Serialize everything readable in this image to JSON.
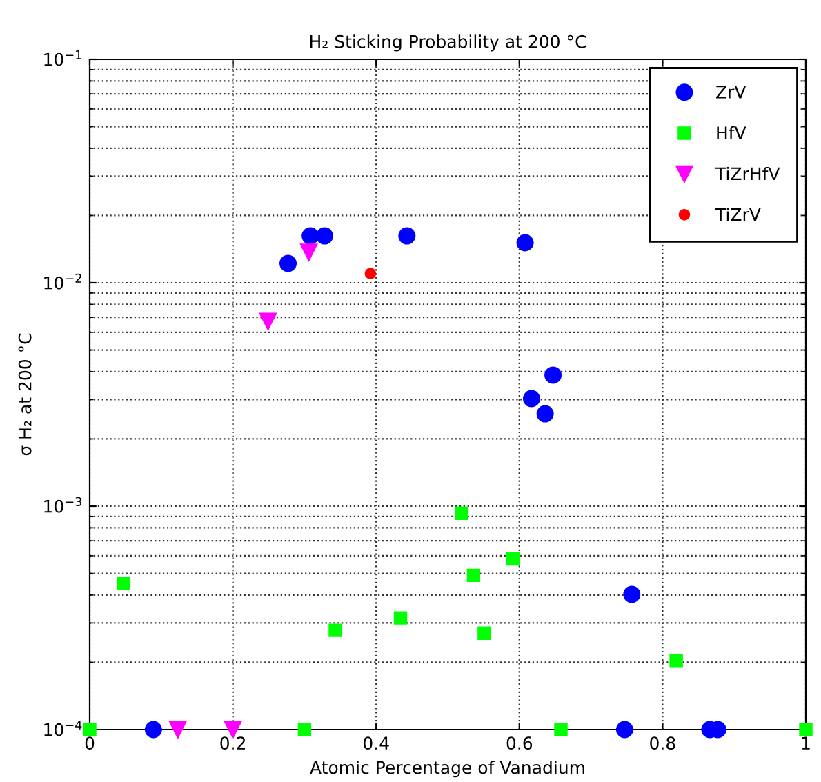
{
  "chart_data": {
    "type": "scatter",
    "title": "H₂ Sticking Probability at 200 °C",
    "xlabel": "Atomic Percentage of Vanadium",
    "ylabel": "σ H₂ at 200 °C",
    "log": "y",
    "grid": true,
    "legend": "top right",
    "xlim": [
      0,
      1
    ],
    "xticks": [
      0,
      0.2,
      0.4,
      0.6,
      0.8,
      1
    ],
    "ylim": [
      0.0001,
      0.1
    ],
    "yticks": [
      {
        "value": 0.0001,
        "label": "10$^{−4}$"
      },
      {
        "value": 0.001,
        "label": "10$^{−3}$"
      },
      {
        "value": 0.01,
        "label": "10$^{−2}$"
      },
      {
        "value": 0.1,
        "label": "10$^{−1}$"
      }
    ],
    "series": [
      {
        "name": "ZrV",
        "color": "#0000ff",
        "marker": "circle",
        "x": [
          0.277,
          0.308,
          0.328,
          0.443,
          0.608,
          0.617,
          0.636,
          0.647,
          0.757,
          0.089,
          0.747,
          0.866,
          0.877
        ],
        "values": [
          0.0122,
          0.0162,
          0.0162,
          0.0162,
          0.0151,
          0.00303,
          0.00259,
          0.00386,
          0.000403,
          0.0001,
          0.0001,
          0.0001,
          0.0001
        ]
      },
      {
        "name": "HfV",
        "color": "#00ff00",
        "marker": "square",
        "x": [
          0,
          0.047,
          0.343,
          0.434,
          0.519,
          0.536,
          0.551,
          0.591,
          0.3,
          0.658,
          0.819,
          1.0
        ],
        "values": [
          0.0001,
          0.000451,
          0.000278,
          0.000316,
          0.00093,
          0.00049,
          0.00027,
          0.00058,
          0.0001,
          0.0001,
          0.000204,
          0.0001
        ]
      },
      {
        "name": "TiZrHfV",
        "color": "#ff00ff",
        "marker": "triangle",
        "x": [
          0.123,
          0.2,
          0.249,
          0.306
        ],
        "values": [
          0.0001,
          0.0001,
          0.00672,
          0.0137
        ]
      },
      {
        "name": "TiZrV",
        "color": "#ff0000",
        "marker": "circle_small",
        "x": [
          0.392
        ],
        "values": [
          0.011
        ]
      }
    ]
  }
}
